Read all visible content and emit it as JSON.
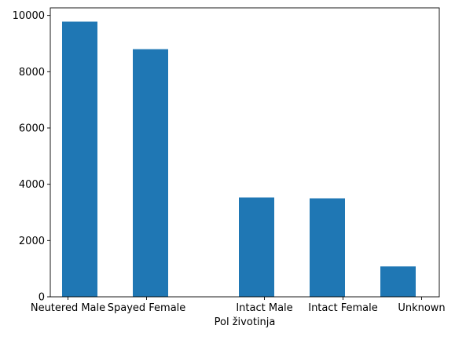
{
  "chart_data": {
    "type": "bar",
    "title": "",
    "xlabel": "Pol životinja",
    "ylabel": "",
    "categories": [
      "Neutered Male",
      "Spayed Female",
      "Intact Male",
      "Intact Female",
      "Unknown"
    ],
    "x": [
      0.15,
      1.05,
      2.4,
      3.3,
      4.2
    ],
    "values": [
      9780,
      8800,
      3530,
      3500,
      1080
    ],
    "tick_positions": [
      0,
      1,
      2.5,
      3.5,
      4.5
    ],
    "bar_width": 0.45,
    "xlim": [
      -0.225,
      4.725
    ],
    "ylim": [
      0,
      10269
    ],
    "yticks": [
      0,
      2000,
      4000,
      6000,
      8000,
      10000
    ],
    "grid": false,
    "colors": {
      "bar": "#1f77b4",
      "axis": "#000000",
      "background": "#ffffff"
    }
  }
}
